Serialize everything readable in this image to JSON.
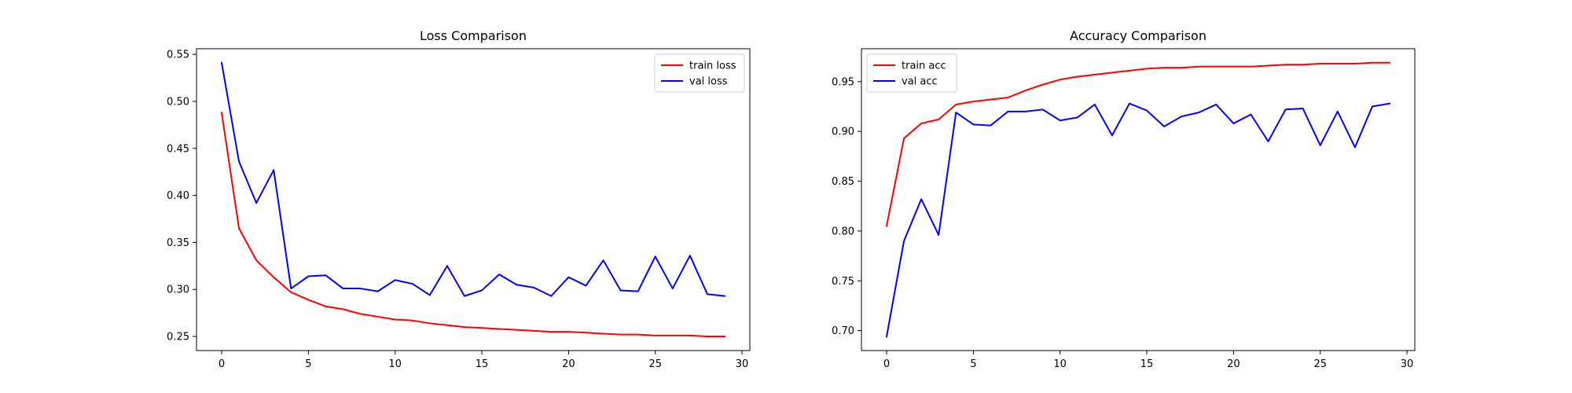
{
  "chart_data": [
    {
      "type": "line",
      "title": "Loss Comparison",
      "xlabel": "",
      "ylabel": "",
      "xlim": [
        -1.45,
        30.45
      ],
      "ylim": [
        0.235,
        0.556
      ],
      "xticks": [
        0,
        5,
        10,
        15,
        20,
        25,
        30
      ],
      "yticks": [
        0.25,
        0.3,
        0.35,
        0.4,
        0.45,
        0.5,
        0.55
      ],
      "ytick_format": 2,
      "grid": false,
      "legend_position": "top-right",
      "x": [
        0,
        1,
        2,
        3,
        4,
        5,
        6,
        7,
        8,
        9,
        10,
        11,
        12,
        13,
        14,
        15,
        16,
        17,
        18,
        19,
        20,
        21,
        22,
        23,
        24,
        25,
        26,
        27,
        28,
        29
      ],
      "series": [
        {
          "name": "train loss",
          "color": "#ff0000",
          "values": [
            0.488,
            0.365,
            0.331,
            0.313,
            0.297,
            0.289,
            0.282,
            0.279,
            0.274,
            0.271,
            0.268,
            0.267,
            0.264,
            0.262,
            0.26,
            0.259,
            0.258,
            0.257,
            0.256,
            0.255,
            0.255,
            0.254,
            0.253,
            0.252,
            0.252,
            0.251,
            0.251,
            0.251,
            0.25,
            0.25
          ]
        },
        {
          "name": "val loss",
          "color": "#0000ff",
          "values": [
            0.541,
            0.436,
            0.392,
            0.427,
            0.301,
            0.314,
            0.315,
            0.301,
            0.301,
            0.298,
            0.31,
            0.306,
            0.294,
            0.325,
            0.293,
            0.299,
            0.316,
            0.305,
            0.302,
            0.293,
            0.313,
            0.304,
            0.331,
            0.299,
            0.298,
            0.335,
            0.301,
            0.336,
            0.295,
            0.293
          ]
        }
      ]
    },
    {
      "type": "line",
      "title": "Accuracy Comparison",
      "xlabel": "",
      "ylabel": "",
      "xlim": [
        -1.45,
        30.45
      ],
      "ylim": [
        0.68,
        0.983
      ],
      "xticks": [
        0,
        5,
        10,
        15,
        20,
        25,
        30
      ],
      "yticks": [
        0.7,
        0.75,
        0.8,
        0.85,
        0.9,
        0.95
      ],
      "ytick_format": 2,
      "grid": false,
      "legend_position": "top-left",
      "x": [
        0,
        1,
        2,
        3,
        4,
        5,
        6,
        7,
        8,
        9,
        10,
        11,
        12,
        13,
        14,
        15,
        16,
        17,
        18,
        19,
        20,
        21,
        22,
        23,
        24,
        25,
        26,
        27,
        28,
        29
      ],
      "series": [
        {
          "name": "train acc",
          "color": "#ff0000",
          "values": [
            0.805,
            0.893,
            0.908,
            0.912,
            0.927,
            0.93,
            0.932,
            0.934,
            0.941,
            0.947,
            0.952,
            0.955,
            0.957,
            0.959,
            0.961,
            0.963,
            0.964,
            0.964,
            0.965,
            0.965,
            0.965,
            0.965,
            0.966,
            0.967,
            0.967,
            0.968,
            0.968,
            0.968,
            0.969,
            0.969
          ]
        },
        {
          "name": "val acc",
          "color": "#0000ff",
          "values": [
            0.694,
            0.79,
            0.832,
            0.796,
            0.919,
            0.907,
            0.906,
            0.92,
            0.92,
            0.922,
            0.911,
            0.914,
            0.927,
            0.896,
            0.928,
            0.921,
            0.905,
            0.915,
            0.919,
            0.927,
            0.908,
            0.917,
            0.89,
            0.922,
            0.923,
            0.886,
            0.92,
            0.884,
            0.925,
            0.928
          ]
        }
      ]
    }
  ]
}
